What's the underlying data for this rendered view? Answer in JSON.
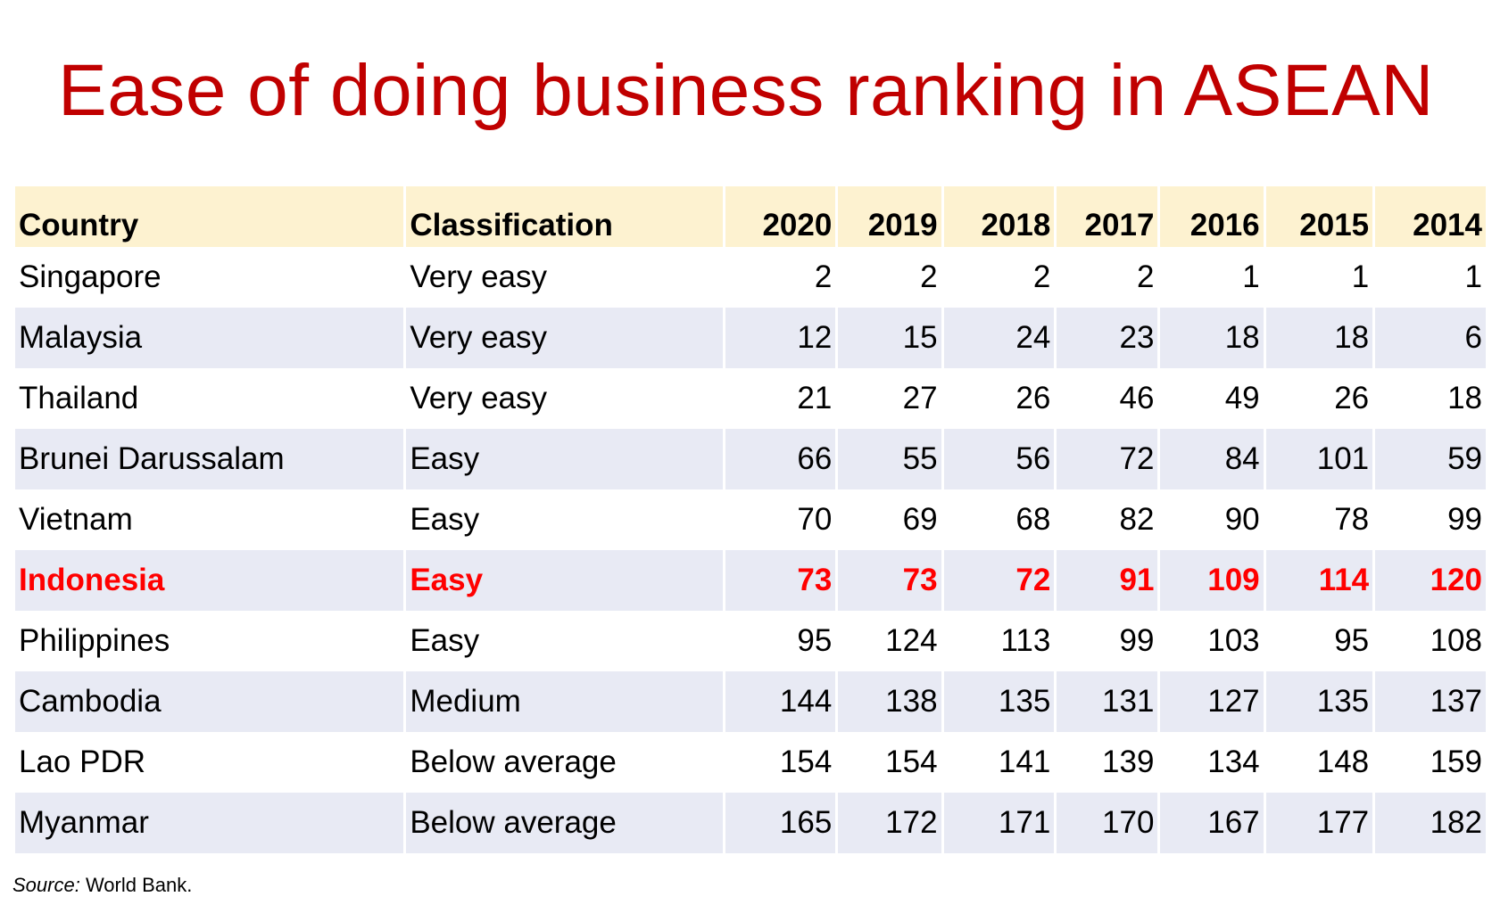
{
  "title": "Ease of doing business ranking in ASEAN",
  "colors": {
    "title": "#c00000",
    "header_bg": "#fdf2d0",
    "stripe_bg": "#e8eaf4",
    "highlight": "#ff0000"
  },
  "table": {
    "headers": [
      "Country",
      "Classification",
      "2020",
      "2019",
      "2018",
      "2017",
      "2016",
      "2015",
      "2014"
    ],
    "highlighted_country": "Indonesia",
    "rows": [
      [
        "Singapore",
        "Very easy",
        "2",
        "2",
        "2",
        "2",
        "1",
        "1",
        "1"
      ],
      [
        "Malaysia",
        "Very easy",
        "12",
        "15",
        "24",
        "23",
        "18",
        "18",
        "6"
      ],
      [
        "Thailand",
        "Very easy",
        "21",
        "27",
        "26",
        "46",
        "49",
        "26",
        "18"
      ],
      [
        "Brunei Darussalam",
        "Easy",
        "66",
        "55",
        "56",
        "72",
        "84",
        "101",
        "59"
      ],
      [
        "Vietnam",
        "Easy",
        "70",
        "69",
        "68",
        "82",
        "90",
        "78",
        "99"
      ],
      [
        "Indonesia",
        "Easy",
        "73",
        "73",
        "72",
        "91",
        "109",
        "114",
        "120"
      ],
      [
        "Philippines",
        "Easy",
        "95",
        "124",
        "113",
        "99",
        "103",
        "95",
        "108"
      ],
      [
        "Cambodia",
        "Medium",
        "144",
        "138",
        "135",
        "131",
        "127",
        "135",
        "137"
      ],
      [
        "Lao PDR",
        "Below average",
        "154",
        "154",
        "141",
        "139",
        "134",
        "148",
        "159"
      ],
      [
        "Myanmar",
        "Below average",
        "165",
        "172",
        "171",
        "170",
        "167",
        "177",
        "182"
      ]
    ]
  },
  "source": {
    "label": "Source:",
    "text": " World Bank."
  }
}
